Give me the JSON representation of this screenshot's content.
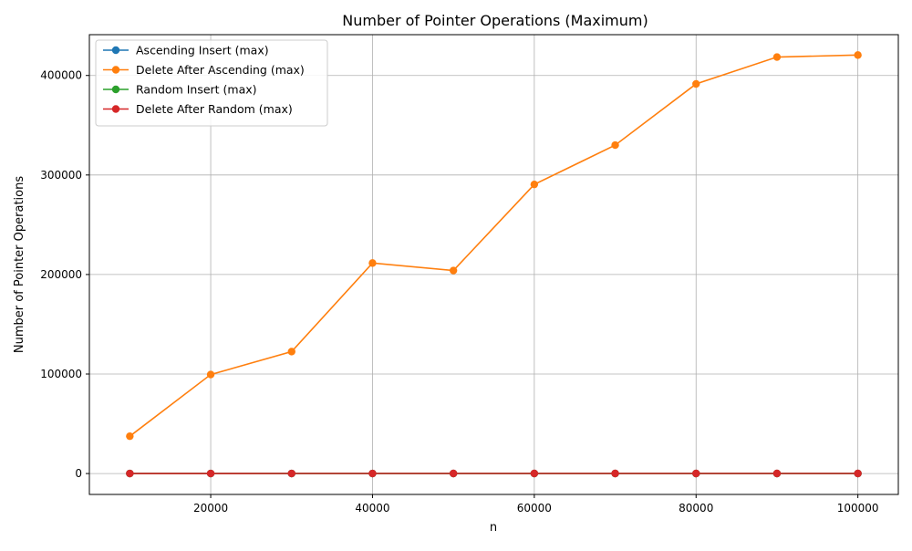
{
  "chart_data": {
    "type": "line",
    "title": "Number of Pointer Operations (Maximum)",
    "xlabel": "n",
    "ylabel": "Number of Pointer Operations",
    "x": [
      10000,
      20000,
      30000,
      40000,
      50000,
      60000,
      70000,
      80000,
      90000,
      100000
    ],
    "xlim": [
      5000,
      105000
    ],
    "ylim": [
      -21000,
      441000
    ],
    "xticks": [
      20000,
      40000,
      60000,
      80000,
      100000
    ],
    "yticks": [
      0,
      100000,
      200000,
      300000,
      400000
    ],
    "grid": true,
    "legend_position": "top-left",
    "series": [
      {
        "name": "Ascending Insert (max)",
        "color": "#1f77b4",
        "marker": "circle",
        "values": [
          8,
          9,
          9,
          10,
          10,
          10,
          10,
          10,
          10,
          11
        ]
      },
      {
        "name": "Delete After Ascending (max)",
        "color": "#ff7f0e",
        "marker": "circle",
        "values": [
          37500,
          99500,
          122500,
          211500,
          204000,
          290500,
          330000,
          391500,
          418500,
          420500
        ]
      },
      {
        "name": "Random Insert (max)",
        "color": "#2ca02c",
        "marker": "circle",
        "values": [
          20,
          22,
          23,
          24,
          24,
          25,
          25,
          26,
          26,
          26
        ]
      },
      {
        "name": "Delete After Random (max)",
        "color": "#d62728",
        "marker": "circle",
        "values": [
          60,
          65,
          70,
          70,
          72,
          75,
          75,
          78,
          78,
          80
        ]
      }
    ]
  }
}
